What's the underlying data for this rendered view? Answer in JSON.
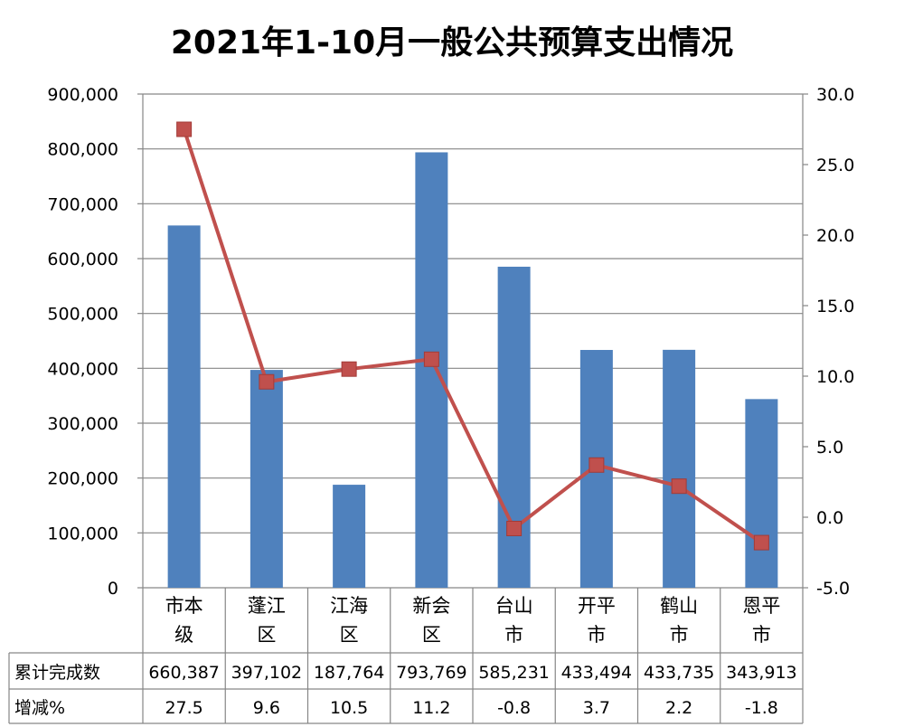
{
  "chart_data": {
    "type": "bar",
    "title": "2021年1-10月一般公共预算支出情况",
    "categories": [
      "市本级",
      "蓬江区",
      "江海区",
      "新会区",
      "台山市",
      "开平市",
      "鹤山市",
      "恩平市"
    ],
    "series": [
      {
        "name": "累计完成数",
        "type": "bar",
        "axis": "left",
        "values": [
          660387,
          397102,
          187764,
          793769,
          585231,
          433494,
          433735,
          343913
        ],
        "labels": [
          "660,387",
          "397,102",
          "187,764",
          "793,769",
          "585,231",
          "433,494",
          "433,735",
          "343,913"
        ]
      },
      {
        "name": "增减%",
        "type": "line",
        "axis": "right",
        "values": [
          27.5,
          9.6,
          10.5,
          11.2,
          -0.8,
          3.7,
          2.2,
          -1.8
        ],
        "labels": [
          "27.5",
          "9.6",
          "10.5",
          "11.2",
          "-0.8",
          "3.7",
          "2.2",
          "-1.8"
        ]
      }
    ],
    "y_left": {
      "range": [
        0,
        900000
      ],
      "step": 100000,
      "tick_labels": [
        "0",
        "100,000",
        "200,000",
        "300,000",
        "400,000",
        "500,000",
        "600,000",
        "700,000",
        "800,000",
        "900,000"
      ]
    },
    "y_right": {
      "range": [
        -5,
        30
      ],
      "step": 5,
      "tick_labels": [
        "-5.0",
        "0.0",
        "5.0",
        "10.0",
        "15.0",
        "20.0",
        "25.0",
        "30.0"
      ]
    },
    "grid": true,
    "legend": "data-table",
    "colors": {
      "bar": "#4f81bd",
      "line": "#c0504d",
      "grid": "#868686"
    }
  }
}
